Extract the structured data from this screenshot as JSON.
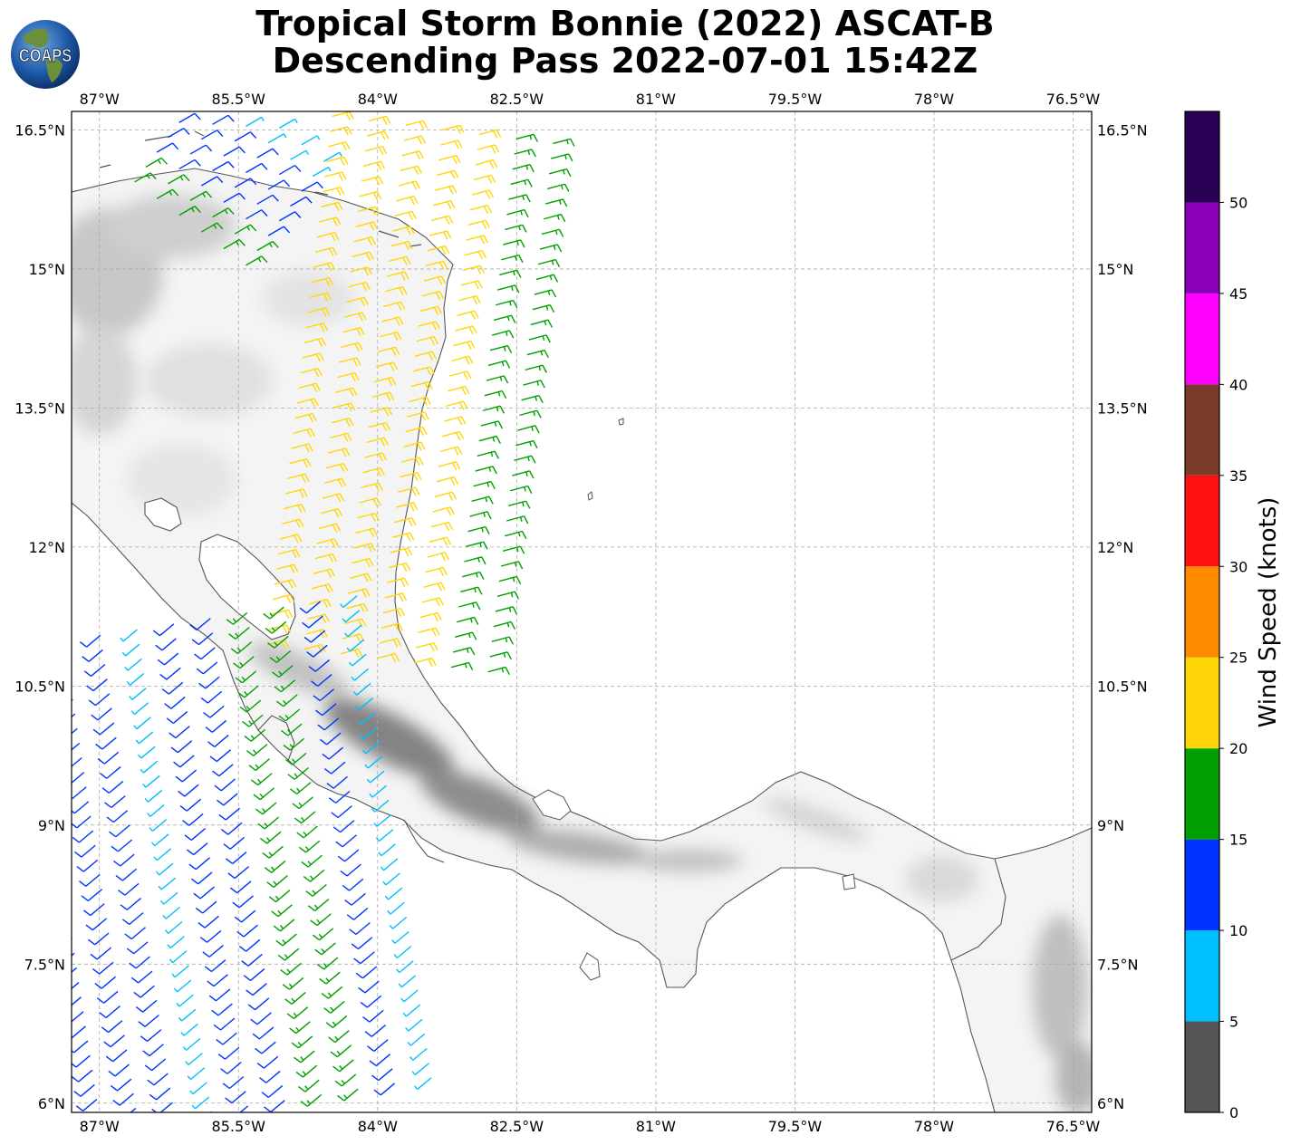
{
  "title": {
    "line1": "Tropical Storm Bonnie (2022) ASCAT-B",
    "line2": "Descending Pass 2022-07-01 15:42Z"
  },
  "logo": {
    "text": "COAPS",
    "icon": "coaps-globe-logo"
  },
  "map": {
    "lon_range": [
      -87.3,
      -76.3
    ],
    "lat_range": [
      5.9,
      16.7
    ],
    "lon_ticks": [
      {
        "value": -87,
        "label": "87°W"
      },
      {
        "value": -85.5,
        "label": "85.5°W"
      },
      {
        "value": -84,
        "label": "84°W"
      },
      {
        "value": -82.5,
        "label": "82.5°W"
      },
      {
        "value": -81,
        "label": "81°W"
      },
      {
        "value": -79.5,
        "label": "79.5°W"
      },
      {
        "value": -78,
        "label": "78°W"
      },
      {
        "value": -76.5,
        "label": "76.5°W"
      }
    ],
    "lat_ticks": [
      {
        "value": 6,
        "label": "6°N"
      },
      {
        "value": 7.5,
        "label": "7.5°N"
      },
      {
        "value": 9,
        "label": "9°N"
      },
      {
        "value": 10.5,
        "label": "10.5°N"
      },
      {
        "value": 12,
        "label": "12°N"
      },
      {
        "value": 13.5,
        "label": "13.5°N"
      },
      {
        "value": 15,
        "label": "15°N"
      },
      {
        "value": 16.5,
        "label": "16.5°N"
      }
    ],
    "gridlines": true
  },
  "colorbar": {
    "label": "Wind Speed (knots)",
    "bins": [
      {
        "from": 0,
        "to": 5,
        "color": "#555555"
      },
      {
        "from": 5,
        "to": 10,
        "color": "#00bfff"
      },
      {
        "from": 10,
        "to": 15,
        "color": "#0033ff"
      },
      {
        "from": 15,
        "to": 20,
        "color": "#00a000"
      },
      {
        "from": 20,
        "to": 25,
        "color": "#ffd60a"
      },
      {
        "from": 25,
        "to": 30,
        "color": "#ff8c00"
      },
      {
        "from": 30,
        "to": 35,
        "color": "#ff1010"
      },
      {
        "from": 35,
        "to": 40,
        "color": "#7b3b2a"
      },
      {
        "from": 40,
        "to": 45,
        "color": "#ff00ff"
      },
      {
        "from": 45,
        "to": 50,
        "color": "#8a00b8"
      },
      {
        "from": 50,
        "to": 55,
        "color": "#2a0055"
      }
    ],
    "tick_labels": [
      "0",
      "5",
      "10",
      "15",
      "20",
      "25",
      "30",
      "35",
      "40",
      "45",
      "50"
    ]
  },
  "wind_swaths": [
    {
      "name": "caribbean-swath",
      "start": [
        -83.3,
        16.5
      ],
      "end": [
        -84.0,
        10.8
      ],
      "width_deg": 2.4,
      "cols": 7,
      "rows": 36,
      "speed_knots_by_column": [
        17,
        18,
        21,
        22,
        23,
        22,
        21
      ],
      "direction_from_deg": 75
    },
    {
      "name": "north-west-swath",
      "start": [
        -86.2,
        16.5
      ],
      "end": [
        -85.0,
        15.6
      ],
      "width_deg": 1.4,
      "cols": 8,
      "rows": 6,
      "speed_knots_by_column": [
        8,
        9,
        10,
        11,
        12,
        13,
        16,
        18
      ],
      "direction_from_deg": 60
    },
    {
      "name": "pacific-swath",
      "start": [
        -86.0,
        11.2
      ],
      "end": [
        -85.2,
        6.0
      ],
      "width_deg": 3.6,
      "cols": 10,
      "rows": 34,
      "speed_knots_by_column": [
        9,
        12,
        16,
        17,
        14,
        11,
        9,
        12,
        13,
        12
      ],
      "direction_from_deg": 230
    }
  ]
}
